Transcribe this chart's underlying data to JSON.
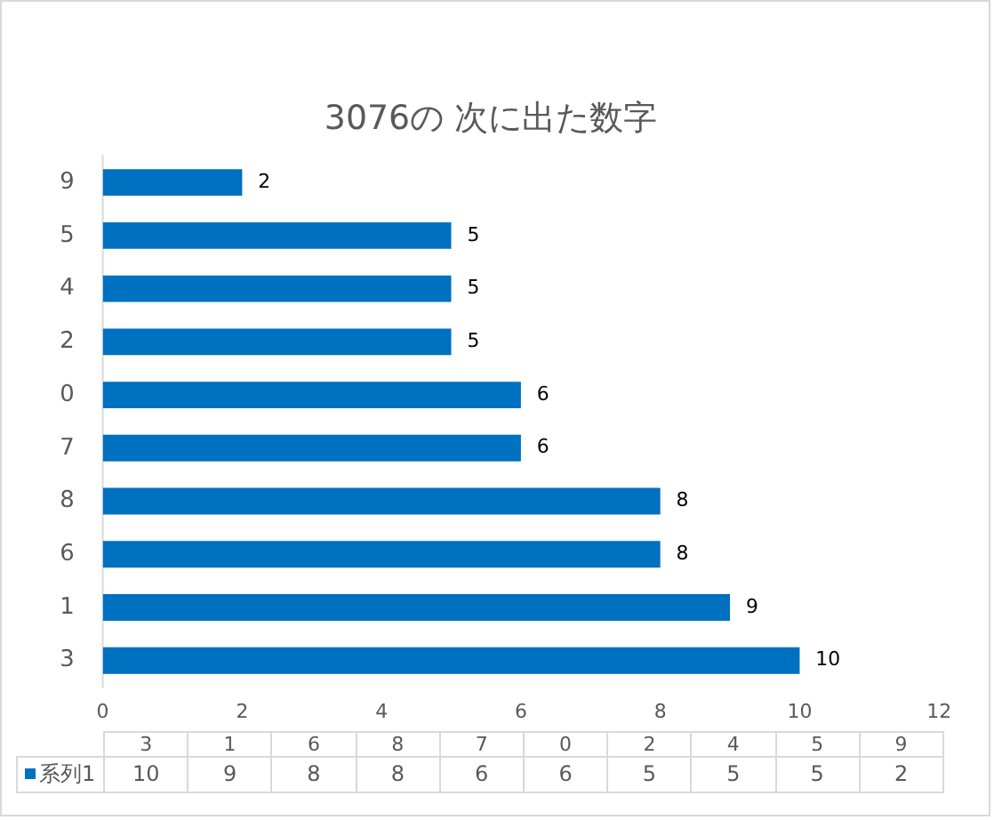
{
  "chart_data": {
    "type": "bar",
    "orientation": "horizontal",
    "title": "3076の 次に出た数字",
    "categories": [
      "9",
      "5",
      "4",
      "2",
      "0",
      "7",
      "8",
      "6",
      "1",
      "3"
    ],
    "series": [
      {
        "name": "系列1",
        "color": "#0070c0",
        "values": [
          2,
          5,
          5,
          5,
          6,
          6,
          8,
          8,
          9,
          10
        ],
        "value_labels": [
          "2",
          "5",
          "5",
          "5",
          "6",
          "6",
          "8",
          "8",
          "9",
          "10"
        ]
      }
    ],
    "xlim": [
      0,
      12
    ],
    "xticks": [
      0,
      2,
      4,
      6,
      8,
      10,
      12
    ],
    "legend": "bottom",
    "grid": false
  }
}
